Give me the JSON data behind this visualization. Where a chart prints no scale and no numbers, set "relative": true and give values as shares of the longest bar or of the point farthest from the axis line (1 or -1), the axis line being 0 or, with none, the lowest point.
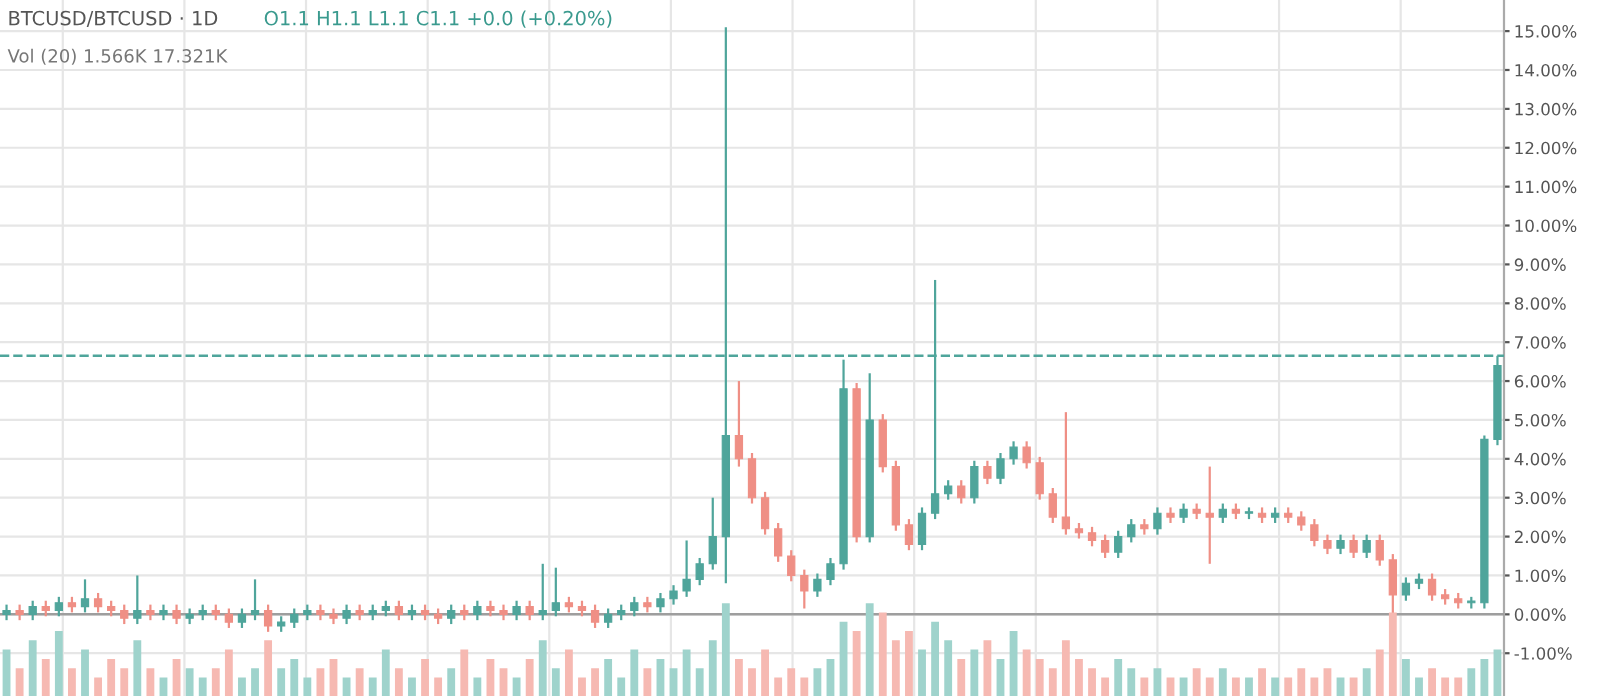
{
  "chart_data": [
    {
      "type": "candlestick",
      "title": "BTCUSD/BTCUSD · 1D",
      "subtitle": "O1.1 H1.1 L1.1 C1.1 +0.0 (+0.20%)",
      "annotations": [
        "Vol (20) 1.566K 17.321K"
      ],
      "categories": [
        null,
        null,
        null,
        null,
        null,
        null,
        null,
        null,
        null,
        null,
        null,
        null,
        null,
        null,
        null,
        null,
        null,
        null,
        null,
        null,
        null,
        null,
        null,
        null,
        null,
        null,
        null,
        null,
        null,
        null,
        null,
        null,
        null,
        null,
        null,
        null,
        null,
        null,
        null,
        null,
        null,
        null,
        null,
        null,
        null,
        null,
        null,
        null,
        null,
        null,
        null,
        null,
        null,
        null,
        null,
        null,
        null,
        null,
        null,
        null,
        null,
        null,
        null,
        null,
        null,
        null,
        null,
        null,
        null,
        null,
        null,
        null,
        null,
        null,
        null,
        null,
        null,
        null,
        null,
        null,
        null,
        null,
        null,
        null,
        null,
        null,
        null,
        null,
        null,
        null,
        null,
        null,
        null,
        null,
        null,
        null,
        null,
        null,
        null,
        null,
        null,
        null,
        null,
        null,
        null,
        null,
        null,
        null,
        null,
        null,
        null,
        null,
        null,
        null,
        null
      ],
      "ohlc": [
        [
          0.0,
          0.25,
          -0.15,
          0.1
        ],
        [
          0.1,
          0.25,
          -0.15,
          0.0
        ],
        [
          0.0,
          0.35,
          -0.15,
          0.2
        ],
        [
          0.2,
          0.35,
          -0.05,
          0.1
        ],
        [
          0.1,
          0.45,
          -0.05,
          0.3
        ],
        [
          0.3,
          0.45,
          0.05,
          0.2
        ],
        [
          0.2,
          0.9,
          0.05,
          0.4
        ],
        [
          0.4,
          0.55,
          0.05,
          0.2
        ],
        [
          0.2,
          0.35,
          -0.05,
          0.1
        ],
        [
          0.1,
          0.25,
          -0.25,
          -0.1
        ],
        [
          -0.1,
          1.0,
          -0.25,
          0.1
        ],
        [
          0.1,
          0.25,
          -0.15,
          0.0
        ],
        [
          0.0,
          0.25,
          -0.15,
          0.1
        ],
        [
          0.1,
          0.25,
          -0.25,
          -0.1
        ],
        [
          -0.1,
          0.15,
          -0.25,
          0.0
        ],
        [
          0.0,
          0.25,
          -0.15,
          0.1
        ],
        [
          0.1,
          0.25,
          -0.15,
          0.0
        ],
        [
          0.0,
          0.15,
          -0.35,
          -0.2
        ],
        [
          -0.2,
          0.15,
          -0.35,
          0.0
        ],
        [
          0.0,
          0.9,
          -0.15,
          0.1
        ],
        [
          0.1,
          0.25,
          -0.45,
          -0.3
        ],
        [
          -0.3,
          -0.05,
          -0.45,
          -0.2
        ],
        [
          -0.2,
          0.15,
          -0.35,
          0.0
        ],
        [
          0.0,
          0.25,
          -0.15,
          0.1
        ],
        [
          0.1,
          0.25,
          -0.15,
          0.0
        ],
        [
          0.0,
          0.15,
          -0.25,
          -0.1
        ],
        [
          -0.1,
          0.25,
          -0.25,
          0.1
        ],
        [
          0.1,
          0.25,
          -0.15,
          0.0
        ],
        [
          0.0,
          0.25,
          -0.15,
          0.1
        ],
        [
          0.1,
          0.35,
          -0.05,
          0.2
        ],
        [
          0.2,
          0.35,
          -0.15,
          0.0
        ],
        [
          0.0,
          0.25,
          -0.15,
          0.1
        ],
        [
          0.1,
          0.25,
          -0.15,
          0.0
        ],
        [
          0.0,
          0.15,
          -0.25,
          -0.1
        ],
        [
          -0.1,
          0.25,
          -0.25,
          0.1
        ],
        [
          0.1,
          0.25,
          -0.15,
          0.0
        ],
        [
          0.0,
          0.35,
          -0.15,
          0.2
        ],
        [
          0.2,
          0.35,
          -0.05,
          0.1
        ],
        [
          0.1,
          0.25,
          -0.15,
          0.0
        ],
        [
          0.0,
          0.35,
          -0.15,
          0.2
        ],
        [
          0.2,
          0.35,
          -0.15,
          0.0
        ],
        [
          0.0,
          1.3,
          -0.15,
          0.1
        ],
        [
          0.1,
          1.2,
          -0.05,
          0.3
        ],
        [
          0.3,
          0.45,
          0.05,
          0.2
        ],
        [
          0.2,
          0.35,
          -0.05,
          0.1
        ],
        [
          0.1,
          0.25,
          -0.35,
          -0.2
        ],
        [
          -0.2,
          0.15,
          -0.35,
          0.0
        ],
        [
          0.0,
          0.25,
          -0.15,
          0.1
        ],
        [
          0.1,
          0.45,
          -0.05,
          0.3
        ],
        [
          0.3,
          0.45,
          0.05,
          0.2
        ],
        [
          0.2,
          0.55,
          0.05,
          0.4
        ],
        [
          0.4,
          0.75,
          0.25,
          0.6
        ],
        [
          0.6,
          1.9,
          0.45,
          0.9
        ],
        [
          0.9,
          1.45,
          0.75,
          1.3
        ],
        [
          1.3,
          3.0,
          1.15,
          2.0
        ],
        [
          2.0,
          15.1,
          0.8,
          4.6
        ],
        [
          4.6,
          6.0,
          3.8,
          4.0
        ],
        [
          4.0,
          4.15,
          2.85,
          3.0
        ],
        [
          3.0,
          3.15,
          2.05,
          2.2
        ],
        [
          2.2,
          2.35,
          1.35,
          1.5
        ],
        [
          1.5,
          1.65,
          0.85,
          1.0
        ],
        [
          1.0,
          1.15,
          0.15,
          0.6
        ],
        [
          0.6,
          1.05,
          0.45,
          0.9
        ],
        [
          0.9,
          1.45,
          0.75,
          1.3
        ],
        [
          1.3,
          6.55,
          1.15,
          5.8
        ],
        [
          5.8,
          5.95,
          1.85,
          2.0
        ],
        [
          2.0,
          6.2,
          1.85,
          5.0
        ],
        [
          5.0,
          5.15,
          3.65,
          3.8
        ],
        [
          3.8,
          3.95,
          2.15,
          2.3
        ],
        [
          2.3,
          2.45,
          1.65,
          1.8
        ],
        [
          1.8,
          2.75,
          1.65,
          2.6
        ],
        [
          2.6,
          8.6,
          2.45,
          3.1
        ],
        [
          3.1,
          3.45,
          2.95,
          3.3
        ],
        [
          3.3,
          3.45,
          2.85,
          3.0
        ],
        [
          3.0,
          3.95,
          2.85,
          3.8
        ],
        [
          3.8,
          3.95,
          3.35,
          3.5
        ],
        [
          3.5,
          4.15,
          3.35,
          4.0
        ],
        [
          4.0,
          4.45,
          3.85,
          4.3
        ],
        [
          4.3,
          4.45,
          3.75,
          3.9
        ],
        [
          3.9,
          4.05,
          2.95,
          3.1
        ],
        [
          3.1,
          3.25,
          2.35,
          2.5
        ],
        [
          2.5,
          5.2,
          2.05,
          2.2
        ],
        [
          2.2,
          2.35,
          1.95,
          2.1
        ],
        [
          2.1,
          2.25,
          1.75,
          1.9
        ],
        [
          1.9,
          2.05,
          1.45,
          1.6
        ],
        [
          1.6,
          2.15,
          1.45,
          2.0
        ],
        [
          2.0,
          2.45,
          1.85,
          2.3
        ],
        [
          2.3,
          2.45,
          2.05,
          2.2
        ],
        [
          2.2,
          2.75,
          2.05,
          2.6
        ],
        [
          2.6,
          2.75,
          2.35,
          2.5
        ],
        [
          2.5,
          2.85,
          2.35,
          2.7
        ],
        [
          2.7,
          2.85,
          2.45,
          2.6
        ],
        [
          2.6,
          3.8,
          1.3,
          2.5
        ],
        [
          2.5,
          2.85,
          2.35,
          2.7
        ],
        [
          2.7,
          2.85,
          2.45,
          2.6
        ],
        [
          2.6,
          2.75,
          2.45,
          2.6
        ],
        [
          2.6,
          2.75,
          2.35,
          2.5
        ],
        [
          2.5,
          2.75,
          2.35,
          2.6
        ],
        [
          2.6,
          2.75,
          2.35,
          2.5
        ],
        [
          2.5,
          2.65,
          2.15,
          2.3
        ],
        [
          2.3,
          2.45,
          1.75,
          1.9
        ],
        [
          1.9,
          2.05,
          1.55,
          1.7
        ],
        [
          1.7,
          2.05,
          1.55,
          1.9
        ],
        [
          1.9,
          2.05,
          1.45,
          1.6
        ],
        [
          1.6,
          2.05,
          1.45,
          1.9
        ],
        [
          1.9,
          2.05,
          1.25,
          1.4
        ],
        [
          1.4,
          1.55,
          -0.3,
          0.5
        ],
        [
          0.5,
          0.95,
          0.35,
          0.8
        ],
        [
          0.8,
          1.05,
          0.65,
          0.9
        ],
        [
          0.9,
          1.05,
          0.35,
          0.5
        ],
        [
          0.5,
          0.65,
          0.25,
          0.4
        ],
        [
          0.4,
          0.55,
          0.15,
          0.3
        ],
        [
          0.3,
          0.45,
          0.15,
          0.3
        ],
        [
          0.3,
          4.6,
          0.15,
          4.5
        ],
        [
          4.5,
          6.65,
          4.35,
          6.4
        ]
      ],
      "colors": [
        "#4fa59b",
        "#ef8f85",
        "#4fa59b",
        "#ef8f85",
        "#4fa59b",
        "#ef8f85",
        "#4fa59b",
        "#ef8f85",
        "#ef8f85",
        "#ef8f85",
        "#4fa59b",
        "#ef8f85",
        "#4fa59b",
        "#ef8f85",
        "#4fa59b",
        "#4fa59b",
        "#ef8f85",
        "#ef8f85",
        "#4fa59b",
        "#4fa59b",
        "#ef8f85",
        "#4fa59b",
        "#4fa59b",
        "#4fa59b",
        "#ef8f85",
        "#ef8f85",
        "#4fa59b",
        "#ef8f85",
        "#4fa59b",
        "#4fa59b",
        "#ef8f85",
        "#4fa59b",
        "#ef8f85",
        "#ef8f85",
        "#4fa59b",
        "#ef8f85",
        "#4fa59b",
        "#ef8f85",
        "#ef8f85",
        "#4fa59b",
        "#ef8f85",
        "#4fa59b",
        "#4fa59b",
        "#ef8f85",
        "#ef8f85",
        "#ef8f85",
        "#4fa59b",
        "#4fa59b",
        "#4fa59b",
        "#ef8f85",
        "#4fa59b",
        "#4fa59b",
        "#4fa59b",
        "#4fa59b",
        "#4fa59b",
        "#4fa59b",
        "#ef8f85",
        "#ef8f85",
        "#ef8f85",
        "#ef8f85",
        "#ef8f85",
        "#ef8f85",
        "#4fa59b",
        "#4fa59b",
        "#4fa59b",
        "#ef8f85",
        "#4fa59b",
        "#ef8f85",
        "#ef8f85",
        "#ef8f85",
        "#4fa59b",
        "#4fa59b",
        "#4fa59b",
        "#ef8f85",
        "#4fa59b",
        "#ef8f85",
        "#4fa59b",
        "#4fa59b",
        "#ef8f85",
        "#ef8f85",
        "#ef8f85",
        "#ef8f85",
        "#ef8f85",
        "#ef8f85",
        "#ef8f85",
        "#4fa59b",
        "#4fa59b",
        "#ef8f85",
        "#4fa59b",
        "#ef8f85",
        "#4fa59b",
        "#ef8f85",
        "#ef8f85",
        "#4fa59b",
        "#ef8f85",
        "#4fa59b",
        "#ef8f85",
        "#4fa59b",
        "#ef8f85",
        "#ef8f85",
        "#ef8f85",
        "#ef8f85",
        "#4fa59b",
        "#ef8f85",
        "#4fa59b",
        "#ef8f85",
        "#ef8f85",
        "#4fa59b",
        "#4fa59b",
        "#ef8f85",
        "#ef8f85",
        "#ef8f85",
        "#4fa59b",
        "#4fa59b",
        "#4fa59b"
      ],
      "ylim": [
        -2.1,
        15.8
      ],
      "yticks": [
        {
          "value": -1,
          "label": "-1.00%"
        },
        {
          "value": 0,
          "label": "0.00%"
        },
        {
          "value": 1,
          "label": "1.00%"
        },
        {
          "value": 2,
          "label": "2.00%"
        },
        {
          "value": 3,
          "label": "3.00%"
        },
        {
          "value": 4,
          "label": "4.00%"
        },
        {
          "value": 5,
          "label": "5.00%"
        },
        {
          "value": 6,
          "label": "6.00%"
        },
        {
          "value": 7,
          "label": "7.00%"
        },
        {
          "value": 8,
          "label": "8.00%"
        },
        {
          "value": 9,
          "label": "9.00%"
        },
        {
          "value": 10,
          "label": "10.00%"
        },
        {
          "value": 11,
          "label": "11.00%"
        },
        {
          "value": 12,
          "label": "12.00%"
        },
        {
          "value": 13,
          "label": "13.00%"
        },
        {
          "value": 14,
          "label": "14.00%"
        },
        {
          "value": 15,
          "label": "15.00%"
        }
      ],
      "ref_lines": [
        {
          "axis": "y",
          "value": 6.65,
          "color": "#4fa59b",
          "line_style": "dashed"
        },
        {
          "axis": "y",
          "value": 0,
          "color": "#9e9e9e",
          "line_style": "solid"
        }
      ],
      "grid": true,
      "tick_labels": "y"
    },
    {
      "type": "bar",
      "relative": true,
      "tick_labels": false,
      "categories": [
        null,
        null,
        null,
        null,
        null,
        null,
        null,
        null,
        null,
        null,
        null,
        null,
        null,
        null,
        null,
        null,
        null,
        null,
        null,
        null,
        null,
        null,
        null,
        null,
        null,
        null,
        null,
        null,
        null,
        null,
        null,
        null,
        null,
        null,
        null,
        null,
        null,
        null,
        null,
        null,
        null,
        null,
        null,
        null,
        null,
        null,
        null,
        null,
        null,
        null,
        null,
        null,
        null,
        null,
        null,
        null,
        null,
        null,
        null,
        null,
        null,
        null,
        null,
        null,
        null,
        null,
        null,
        null,
        null,
        null,
        null,
        null,
        null,
        null,
        null,
        null,
        null,
        null,
        null,
        null,
        null,
        null,
        null,
        null,
        null,
        null,
        null,
        null,
        null,
        null,
        null,
        null,
        null,
        null,
        null,
        null,
        null,
        null,
        null,
        null,
        null,
        null,
        null,
        null,
        null,
        null,
        null,
        null,
        null,
        null,
        null,
        null,
        null,
        null,
        null
      ],
      "values": [
        0.5,
        0.3,
        0.6,
        0.4,
        0.7,
        0.3,
        0.5,
        0.2,
        0.4,
        0.3,
        0.6,
        0.3,
        0.2,
        0.4,
        0.3,
        0.2,
        0.3,
        0.5,
        0.2,
        0.3,
        0.6,
        0.3,
        0.4,
        0.2,
        0.3,
        0.4,
        0.2,
        0.3,
        0.2,
        0.5,
        0.3,
        0.2,
        0.4,
        0.2,
        0.3,
        0.5,
        0.2,
        0.4,
        0.3,
        0.2,
        0.4,
        0.6,
        0.3,
        0.5,
        0.2,
        0.3,
        0.4,
        0.2,
        0.5,
        0.3,
        0.4,
        0.3,
        0.5,
        0.3,
        0.6,
        1.0,
        0.4,
        0.3,
        0.5,
        0.2,
        0.3,
        0.2,
        0.3,
        0.4,
        0.8,
        0.7,
        1.0,
        0.9,
        0.6,
        0.7,
        0.5,
        0.8,
        0.6,
        0.4,
        0.5,
        0.6,
        0.4,
        0.7,
        0.5,
        0.4,
        0.3,
        0.6,
        0.4,
        0.3,
        0.2,
        0.4,
        0.3,
        0.2,
        0.3,
        0.2,
        0.2,
        0.3,
        0.2,
        0.3,
        0.2,
        0.2,
        0.3,
        0.2,
        0.2,
        0.3,
        0.2,
        0.3,
        0.2,
        0.2,
        0.3,
        0.5,
        0.9,
        0.4,
        0.2,
        0.3,
        0.2,
        0.2,
        0.3,
        0.4,
        0.5
      ],
      "colors": [
        "#9fd3cc",
        "#f6b9b2",
        "#9fd3cc",
        "#f6b9b2",
        "#9fd3cc",
        "#f6b9b2",
        "#9fd3cc",
        "#f6b9b2",
        "#f6b9b2",
        "#f6b9b2",
        "#9fd3cc",
        "#f6b9b2",
        "#9fd3cc",
        "#f6b9b2",
        "#9fd3cc",
        "#9fd3cc",
        "#f6b9b2",
        "#f6b9b2",
        "#9fd3cc",
        "#9fd3cc",
        "#f6b9b2",
        "#9fd3cc",
        "#9fd3cc",
        "#9fd3cc",
        "#f6b9b2",
        "#f6b9b2",
        "#9fd3cc",
        "#f6b9b2",
        "#9fd3cc",
        "#9fd3cc",
        "#f6b9b2",
        "#9fd3cc",
        "#f6b9b2",
        "#f6b9b2",
        "#9fd3cc",
        "#f6b9b2",
        "#9fd3cc",
        "#f6b9b2",
        "#f6b9b2",
        "#9fd3cc",
        "#f6b9b2",
        "#9fd3cc",
        "#9fd3cc",
        "#f6b9b2",
        "#f6b9b2",
        "#f6b9b2",
        "#9fd3cc",
        "#9fd3cc",
        "#9fd3cc",
        "#f6b9b2",
        "#9fd3cc",
        "#9fd3cc",
        "#9fd3cc",
        "#9fd3cc",
        "#9fd3cc",
        "#9fd3cc",
        "#f6b9b2",
        "#f6b9b2",
        "#f6b9b2",
        "#f6b9b2",
        "#f6b9b2",
        "#f6b9b2",
        "#9fd3cc",
        "#9fd3cc",
        "#9fd3cc",
        "#f6b9b2",
        "#9fd3cc",
        "#f6b9b2",
        "#f6b9b2",
        "#f6b9b2",
        "#9fd3cc",
        "#9fd3cc",
        "#9fd3cc",
        "#f6b9b2",
        "#9fd3cc",
        "#f6b9b2",
        "#9fd3cc",
        "#9fd3cc",
        "#f6b9b2",
        "#f6b9b2",
        "#f6b9b2",
        "#f6b9b2",
        "#f6b9b2",
        "#f6b9b2",
        "#f6b9b2",
        "#9fd3cc",
        "#9fd3cc",
        "#f6b9b2",
        "#9fd3cc",
        "#f6b9b2",
        "#9fd3cc",
        "#f6b9b2",
        "#f6b9b2",
        "#9fd3cc",
        "#f6b9b2",
        "#9fd3cc",
        "#f6b9b2",
        "#9fd3cc",
        "#f6b9b2",
        "#f6b9b2",
        "#f6b9b2",
        "#f6b9b2",
        "#9fd3cc",
        "#f6b9b2",
        "#9fd3cc",
        "#f6b9b2",
        "#f6b9b2",
        "#9fd3cc",
        "#9fd3cc",
        "#f6b9b2",
        "#f6b9b2",
        "#f6b9b2",
        "#9fd3cc",
        "#9fd3cc",
        "#9fd3cc"
      ]
    }
  ]
}
